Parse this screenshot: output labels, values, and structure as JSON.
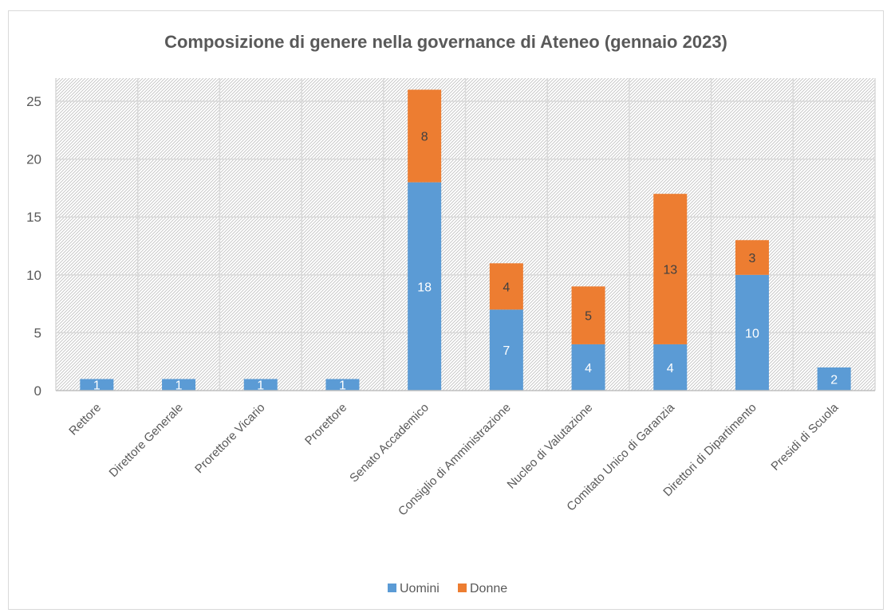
{
  "chart_data": {
    "type": "bar",
    "stacked": true,
    "title": "Composizione di genere nella governance di Ateneo (gennaio 2023)",
    "xlabel": "",
    "ylabel": "",
    "categories": [
      "Rettore",
      "Direttore Generale",
      "Prorettore Vicario",
      "Prorettore",
      "Senato Accademico",
      "Consiglio di Amministrazione",
      "Nucleo di Valutazione",
      "Comitato Unico di Garanzia",
      "Direttori di Dipartimento",
      "Presidi di Scuola"
    ],
    "series": [
      {
        "name": "Uomini",
        "color": "#5b9bd5",
        "values": [
          1,
          1,
          1,
          1,
          18,
          7,
          4,
          4,
          10,
          2
        ]
      },
      {
        "name": "Donne",
        "color": "#ed7d31",
        "values": [
          0,
          0,
          0,
          0,
          8,
          4,
          5,
          13,
          3,
          0
        ]
      }
    ],
    "ylim": [
      0,
      27
    ],
    "yticks": [
      0,
      5,
      10,
      15,
      20,
      25
    ],
    "grid": true,
    "legend": "bottom"
  }
}
